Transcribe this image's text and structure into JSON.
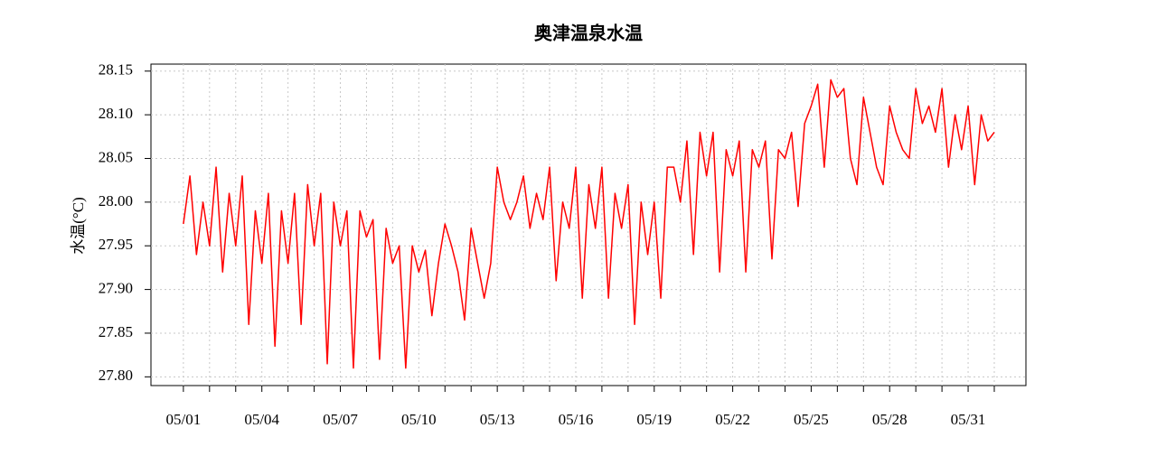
{
  "chart_data": {
    "type": "line",
    "title": "奥津温泉水温",
    "y_label": "水温(°C)",
    "x": [
      1,
      1.25,
      1.5,
      1.75,
      2,
      2.25,
      2.5,
      2.75,
      3,
      3.25,
      3.5,
      3.75,
      4,
      4.25,
      4.5,
      4.75,
      5,
      5.25,
      5.5,
      5.75,
      6,
      6.25,
      6.5,
      6.75,
      7,
      7.25,
      7.5,
      7.75,
      8,
      8.25,
      8.5,
      8.75,
      9,
      9.25,
      9.5,
      9.75,
      10,
      10.25,
      10.5,
      10.75,
      11,
      11.25,
      11.5,
      11.75,
      12,
      12.25,
      12.5,
      12.75,
      13,
      13.25,
      13.5,
      13.75,
      14,
      14.25,
      14.5,
      14.75,
      15,
      15.25,
      15.5,
      15.75,
      16,
      16.25,
      16.5,
      16.75,
      17,
      17.25,
      17.5,
      17.75,
      18,
      18.25,
      18.5,
      18.75,
      19,
      19.25,
      19.5,
      19.75,
      20,
      20.25,
      20.5,
      20.75,
      21,
      21.25,
      21.5,
      21.75,
      22,
      22.25,
      22.5,
      22.75,
      23,
      23.25,
      23.5,
      23.75,
      24,
      24.25,
      24.5,
      24.75,
      25,
      25.25,
      25.5,
      25.75,
      26,
      26.25,
      26.5,
      26.75,
      27,
      27.25,
      27.5,
      27.75,
      28,
      28.25,
      28.5,
      28.75,
      29,
      29.25,
      29.5,
      29.75,
      30,
      30.25,
      30.5,
      30.75,
      31,
      31.25,
      31.5,
      31.75,
      32
    ],
    "series": [
      {
        "color": "#ff0000",
        "values": [
          27.975,
          28.03,
          27.94,
          28.0,
          27.95,
          28.04,
          27.92,
          28.01,
          27.95,
          28.03,
          27.86,
          27.99,
          27.93,
          28.01,
          27.835,
          27.99,
          27.93,
          28.01,
          27.86,
          28.02,
          27.95,
          28.01,
          27.815,
          28.0,
          27.95,
          27.99,
          27.81,
          27.99,
          27.96,
          27.98,
          27.82,
          27.97,
          27.93,
          27.95,
          27.81,
          27.95,
          27.92,
          27.945,
          27.87,
          27.93,
          27.975,
          27.95,
          27.92,
          27.865,
          27.97,
          27.93,
          27.89,
          27.93,
          28.04,
          28.0,
          27.98,
          28.0,
          28.03,
          27.97,
          28.01,
          27.98,
          28.04,
          27.91,
          28.0,
          27.97,
          28.04,
          27.89,
          28.02,
          27.97,
          28.04,
          27.89,
          28.01,
          27.97,
          28.02,
          27.86,
          28.0,
          27.94,
          28.0,
          27.89,
          28.04,
          28.04,
          28.0,
          28.07,
          27.94,
          28.08,
          28.03,
          28.08,
          27.92,
          28.06,
          28.03,
          28.07,
          27.92,
          28.06,
          28.04,
          28.07,
          27.935,
          28.06,
          28.05,
          28.08,
          27.995,
          28.09,
          28.11,
          28.135,
          28.04,
          28.14,
          28.12,
          28.13,
          28.05,
          28.02,
          28.12,
          28.08,
          28.04,
          28.02,
          28.11,
          28.08,
          28.06,
          28.05,
          28.13,
          28.09,
          28.11,
          28.08,
          28.13,
          28.04,
          28.1,
          28.06,
          28.11,
          28.02,
          28.1,
          28.07,
          28.08
        ]
      }
    ],
    "xlim": [
      -0.24,
      33.21
    ],
    "xticks": [
      {
        "value": 1,
        "label": "05/01"
      },
      {
        "value": 4,
        "label": "05/04"
      },
      {
        "value": 7,
        "label": "05/07"
      },
      {
        "value": 10,
        "label": "05/10"
      },
      {
        "value": 13,
        "label": "05/13"
      },
      {
        "value": 16,
        "label": "05/16"
      },
      {
        "value": 19,
        "label": "05/19"
      },
      {
        "value": 22,
        "label": "05/22"
      },
      {
        "value": 25,
        "label": "05/25"
      },
      {
        "value": 28,
        "label": "05/28"
      },
      {
        "value": 31,
        "label": "05/31"
      }
    ],
    "xminor_ticks": [
      2,
      3,
      5,
      6,
      8,
      9,
      11,
      12,
      14,
      15,
      17,
      18,
      20,
      21,
      23,
      24,
      26,
      27,
      29,
      30,
      32
    ],
    "ylim": [
      27.79,
      28.158
    ],
    "yticks": [
      {
        "value": 27.8,
        "label": "27.80"
      },
      27.85,
      {
        "value": 27.9,
        "label": "27.90"
      },
      27.95,
      {
        "value": 28.0,
        "label": "28.00"
      },
      28.05,
      {
        "value": 28.1,
        "label": "28.10"
      },
      28.15
    ],
    "grid": true
  }
}
